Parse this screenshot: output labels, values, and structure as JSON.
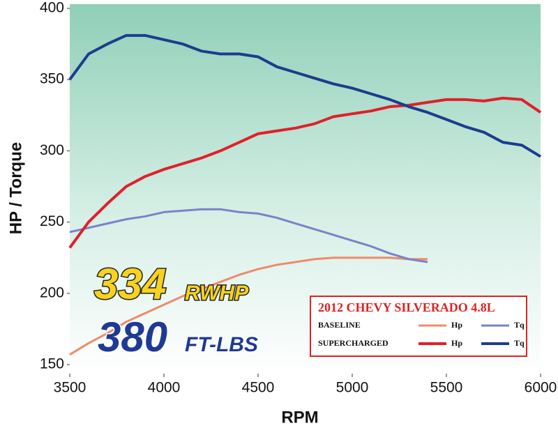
{
  "chart_data": {
    "type": "line",
    "x_label": "RPM",
    "y_label": "HP / Torque",
    "annotations": {
      "hp_value": "334",
      "hp_unit": "RWHP",
      "tq_value": "380",
      "tq_unit": "FT-LBS"
    },
    "legend_title": "2012 CHEVY SILVERADO 4.8L",
    "xlim": [
      3500,
      6000
    ],
    "xticks": [
      3500,
      4000,
      4500,
      5000,
      5500,
      6000
    ],
    "ylim": [
      150,
      400
    ],
    "yticks": [
      150,
      200,
      250,
      300,
      350,
      400
    ],
    "series": [
      {
        "group": "BASELINE",
        "name": "Hp",
        "color": "#f08a6a",
        "x": [
          3500,
          3600,
          3700,
          3800,
          3900,
          4000,
          4100,
          4200,
          4300,
          4400,
          4500,
          4600,
          4700,
          4800,
          4900,
          5000,
          5100,
          5200,
          5300,
          5400
        ],
        "values": [
          157,
          165,
          172,
          180,
          186,
          192,
          198,
          203,
          208,
          213,
          217,
          220,
          222,
          224,
          225,
          225,
          225,
          225,
          224,
          224
        ]
      },
      {
        "group": "BASELINE",
        "name": "Tq",
        "color": "#7a82c8",
        "x": [
          3500,
          3600,
          3700,
          3800,
          3900,
          4000,
          4100,
          4200,
          4300,
          4400,
          4500,
          4600,
          4700,
          4800,
          4900,
          5000,
          5100,
          5200,
          5300,
          5400
        ],
        "values": [
          243,
          246,
          249,
          252,
          254,
          257,
          258,
          259,
          259,
          257,
          256,
          253,
          249,
          245,
          241,
          237,
          233,
          228,
          224,
          222
        ]
      },
      {
        "group": "SUPERCHARGED",
        "name": "Hp",
        "color": "#e0202a",
        "x": [
          3500,
          3600,
          3700,
          3800,
          3900,
          4000,
          4100,
          4200,
          4300,
          4400,
          4500,
          4600,
          4700,
          4800,
          4900,
          5000,
          5100,
          5200,
          5300,
          5400,
          5500,
          5600,
          5700,
          5800,
          5900,
          6000
        ],
        "values": [
          232,
          250,
          263,
          275,
          282,
          287,
          291,
          295,
          300,
          306,
          312,
          314,
          316,
          319,
          324,
          326,
          328,
          331,
          332,
          334,
          336,
          336,
          335,
          337,
          336,
          327
        ]
      },
      {
        "group": "SUPERCHARGED",
        "name": "Tq",
        "color": "#1c3c8e",
        "x": [
          3500,
          3600,
          3700,
          3800,
          3900,
          4000,
          4100,
          4200,
          4300,
          4400,
          4500,
          4600,
          4700,
          4800,
          4900,
          5000,
          5100,
          5200,
          5300,
          5400,
          5500,
          5600,
          5700,
          5800,
          5900,
          6000
        ],
        "values": [
          350,
          368,
          375,
          381,
          381,
          378,
          375,
          370,
          368,
          368,
          366,
          359,
          355,
          351,
          347,
          344,
          340,
          336,
          331,
          327,
          322,
          317,
          313,
          306,
          304,
          296
        ]
      }
    ]
  }
}
